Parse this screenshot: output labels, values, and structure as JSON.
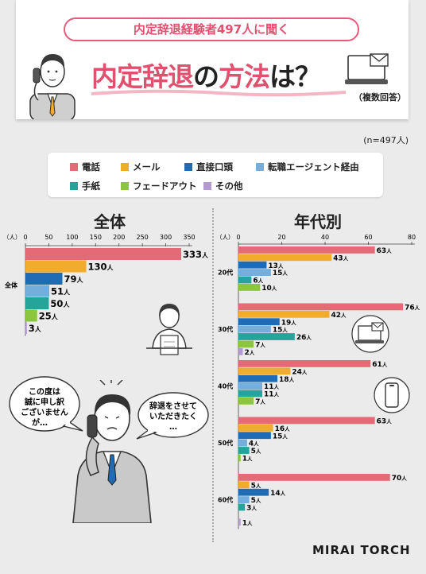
{
  "header": {
    "subtitle": "内定辞退経験者497人に聞く",
    "title_part1": "内定辞退",
    "title_part2": "の",
    "title_part3": "方法",
    "title_part4": "は？",
    "multi_answer": "（複数回答）",
    "sample": "(n=497人)"
  },
  "legend": [
    {
      "label": "電話",
      "color": "#e46a78"
    },
    {
      "label": "メール",
      "color": "#f2ac2c"
    },
    {
      "label": "直接口頭",
      "color": "#1f6bb5"
    },
    {
      "label": "転職エージェント経由",
      "color": "#74aedc"
    },
    {
      "label": "手紙",
      "color": "#25a59a"
    },
    {
      "label": "フェードアウト",
      "color": "#8cc63f"
    },
    {
      "label": "その他",
      "color": "#b39bd0"
    }
  ],
  "speech": {
    "bubble1": [
      "この度は",
      "誠に申し訳",
      "ございません",
      "が…"
    ],
    "bubble2": [
      "辞退をさせて",
      "いただきたく",
      "…"
    ]
  },
  "brand": "MIRAI TORCH",
  "chart_data": [
    {
      "type": "bar",
      "title": "全体",
      "unit": "（人）",
      "orientation": "horizontal",
      "categories": [
        "全体"
      ],
      "xlim": [
        0,
        350
      ],
      "ticks": [
        0,
        50,
        100,
        150,
        200,
        250,
        300,
        350
      ],
      "series": [
        {
          "name": "電話",
          "values": [
            333
          ]
        },
        {
          "name": "メール",
          "values": [
            130
          ]
        },
        {
          "name": "直接口頭",
          "values": [
            79
          ]
        },
        {
          "name": "転職エージェント経由",
          "values": [
            51
          ]
        },
        {
          "name": "手紙",
          "values": [
            50
          ]
        },
        {
          "name": "フェードアウト",
          "values": [
            25
          ]
        },
        {
          "name": "その他",
          "values": [
            3
          ]
        }
      ]
    },
    {
      "type": "bar",
      "title": "年代別",
      "unit": "（人）",
      "orientation": "horizontal",
      "categories": [
        "20代",
        "30代",
        "40代",
        "50代",
        "60代"
      ],
      "xlim": [
        0,
        80
      ],
      "ticks": [
        0,
        20,
        40,
        60,
        80
      ],
      "series": [
        {
          "name": "電話",
          "values": [
            63,
            76,
            61,
            63,
            70
          ]
        },
        {
          "name": "メール",
          "values": [
            43,
            42,
            24,
            16,
            5
          ]
        },
        {
          "name": "直接口頭",
          "values": [
            13,
            19,
            18,
            15,
            14
          ]
        },
        {
          "name": "転職エージェント経由",
          "values": [
            15,
            15,
            11,
            4,
            5
          ]
        },
        {
          "name": "手紙",
          "values": [
            6,
            26,
            11,
            5,
            3
          ]
        },
        {
          "name": "フェードアウト",
          "values": [
            10,
            7,
            7,
            1,
            0
          ]
        },
        {
          "name": "その他",
          "values": [
            0,
            2,
            0,
            0,
            1
          ]
        }
      ]
    }
  ]
}
